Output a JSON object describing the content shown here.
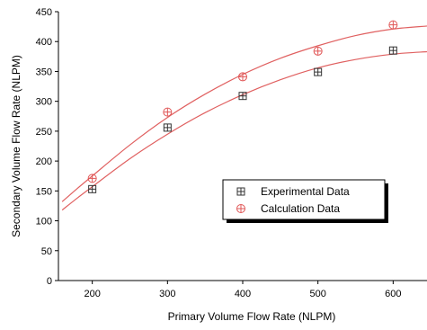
{
  "chart_data": {
    "type": "scatter",
    "title": "",
    "xlabel": "Primary Volume Flow Rate (NLPM)",
    "ylabel": "Secondary Volume Flow Rate (NLPM)",
    "xlim": [
      155,
      645
    ],
    "ylim": [
      0,
      450
    ],
    "x_ticks": [
      200,
      300,
      400,
      500,
      600
    ],
    "y_ticks": [
      0,
      50,
      100,
      150,
      200,
      250,
      300,
      350,
      400,
      450
    ],
    "grid": false,
    "legend_position": "lower-right",
    "series": [
      {
        "name": "Experimental Data",
        "marker": "square-plus",
        "color": "#333333",
        "x": [
          200,
          300,
          400,
          500,
          600
        ],
        "y": [
          153,
          256,
          309,
          349,
          385
        ],
        "fit_color": "#e06060",
        "fit_x": [
          160,
          180,
          200,
          250,
          300,
          350,
          400,
          450,
          500,
          550,
          600,
          645
        ],
        "fit_y": [
          118,
          138,
          157,
          204,
          245,
          281,
          311,
          336,
          356,
          370,
          379,
          383
        ]
      },
      {
        "name": "Calculation Data",
        "marker": "circle-plus",
        "color": "#e05555",
        "x": [
          200,
          300,
          400,
          500,
          600
        ],
        "y": [
          171,
          282,
          341,
          384,
          428
        ],
        "fit_color": "#e06060",
        "fit_x": [
          160,
          180,
          200,
          250,
          300,
          350,
          400,
          450,
          500,
          550,
          600,
          645
        ],
        "fit_y": [
          132,
          154,
          175,
          227,
          273,
          312,
          345,
          372,
          393,
          410,
          421,
          426
        ]
      }
    ]
  }
}
